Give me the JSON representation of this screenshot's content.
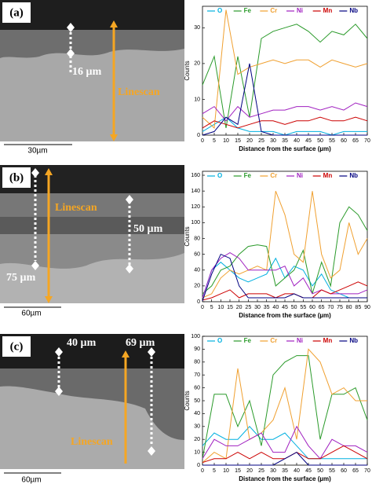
{
  "images": [
    {
      "label": "(a)",
      "annotations": [
        "16 µm",
        "Linescan"
      ],
      "scale_bar": "30µm"
    },
    {
      "label": "(b)",
      "annotations": [
        "75 µm",
        "Linescan",
        "50 µm"
      ],
      "scale_bar": "60µm"
    },
    {
      "label": "(c)",
      "annotations": [
        "40 µm",
        "69 µm",
        "Linescan"
      ],
      "scale_bar": "60µm"
    }
  ],
  "chart_data": [
    {
      "type": "line",
      "x_label": "Distance from the surface (µm)",
      "y_label": "Counts",
      "x": [
        0,
        5,
        10,
        15,
        20,
        25,
        30,
        35,
        40,
        45,
        50,
        55,
        60,
        65,
        70
      ],
      "xlim": [
        0,
        70
      ],
      "xticks": [
        0,
        5,
        10,
        15,
        20,
        25,
        30,
        35,
        40,
        45,
        50,
        55,
        60,
        65,
        70
      ],
      "ylim": [
        0,
        36
      ],
      "yticks": [
        0,
        10,
        20,
        30
      ],
      "series": [
        {
          "name": "O",
          "color": "#00b0e0",
          "values": [
            1,
            3,
            5,
            2,
            1,
            1,
            1,
            0,
            1,
            1,
            1,
            0,
            1,
            1,
            1
          ]
        },
        {
          "name": "Fe",
          "color": "#2a9a2a",
          "values": [
            14,
            22,
            2,
            22,
            5,
            27,
            29,
            30,
            31,
            29,
            26,
            29,
            28,
            31,
            27
          ]
        },
        {
          "name": "Cr",
          "color": "#f0a030",
          "values": [
            5,
            2,
            35,
            17,
            19,
            20,
            21,
            20,
            21,
            21,
            19,
            21,
            20,
            19,
            20
          ]
        },
        {
          "name": "Ni",
          "color": "#a020c0",
          "values": [
            6,
            8,
            4,
            8,
            5,
            6,
            7,
            7,
            8,
            8,
            7,
            8,
            7,
            9,
            8
          ]
        },
        {
          "name": "Mn",
          "color": "#cc0000",
          "values": [
            2,
            4,
            3,
            2,
            3,
            4,
            4,
            3,
            4,
            4,
            5,
            4,
            4,
            5,
            4
          ]
        },
        {
          "name": "Nb",
          "color": "#000080",
          "values": [
            0,
            1,
            5,
            3,
            20,
            1,
            0,
            0,
            0,
            0,
            0,
            0,
            0,
            0,
            0
          ]
        }
      ]
    },
    {
      "type": "line",
      "x_label": "Distance from the surface (µm)",
      "y_label": "Counts",
      "x": [
        0,
        5,
        10,
        15,
        20,
        25,
        30,
        35,
        40,
        45,
        50,
        55,
        60,
        65,
        70,
        75,
        80,
        85,
        90
      ],
      "xlim": [
        0,
        90
      ],
      "xticks": [
        0,
        5,
        10,
        15,
        20,
        25,
        30,
        35,
        40,
        45,
        50,
        55,
        60,
        65,
        70,
        75,
        80,
        85,
        90
      ],
      "ylim": [
        0,
        165
      ],
      "yticks": [
        0,
        20,
        40,
        60,
        80,
        100,
        120,
        140,
        160
      ],
      "series": [
        {
          "name": "O",
          "color": "#00b0e0",
          "values": [
            5,
            40,
            50,
            40,
            30,
            25,
            30,
            35,
            55,
            30,
            45,
            40,
            20,
            35,
            15,
            10,
            5,
            5,
            5
          ]
        },
        {
          "name": "Fe",
          "color": "#2a9a2a",
          "values": [
            10,
            20,
            40,
            45,
            60,
            70,
            72,
            70,
            20,
            30,
            40,
            65,
            10,
            50,
            20,
            100,
            120,
            110,
            90
          ]
        },
        {
          "name": "Cr",
          "color": "#f0a030",
          "values": [
            5,
            10,
            30,
            40,
            35,
            40,
            45,
            40,
            140,
            110,
            60,
            50,
            140,
            60,
            30,
            40,
            100,
            60,
            80
          ]
        },
        {
          "name": "Ni",
          "color": "#a020c0",
          "values": [
            5,
            40,
            55,
            62,
            55,
            40,
            40,
            40,
            40,
            45,
            20,
            30,
            10,
            15,
            10,
            10,
            10,
            10,
            15
          ]
        },
        {
          "name": "Mn",
          "color": "#cc0000",
          "values": [
            2,
            5,
            10,
            15,
            5,
            10,
            10,
            10,
            5,
            10,
            10,
            5,
            5,
            15,
            10,
            15,
            20,
            25,
            20
          ]
        },
        {
          "name": "Nb",
          "color": "#000080",
          "values": [
            1,
            35,
            60,
            55,
            20,
            5,
            5,
            5,
            5,
            5,
            10,
            5,
            5,
            5,
            5,
            5,
            5,
            5,
            5
          ]
        }
      ]
    },
    {
      "type": "line",
      "x_label": "Distance from the surface (µm)",
      "y_label": "Counts",
      "x": [
        0,
        5,
        10,
        15,
        20,
        25,
        30,
        35,
        40,
        45,
        50,
        55,
        60,
        65,
        70
      ],
      "xlim": [
        0,
        70
      ],
      "xticks": [
        0,
        5,
        10,
        15,
        20,
        25,
        30,
        35,
        40,
        45,
        50,
        55,
        60,
        65,
        70
      ],
      "ylim": [
        0,
        100
      ],
      "yticks": [
        0,
        10,
        20,
        30,
        40,
        50,
        60,
        70,
        80,
        90,
        100
      ],
      "series": [
        {
          "name": "O",
          "color": "#00b0e0",
          "values": [
            15,
            25,
            20,
            20,
            30,
            20,
            20,
            25,
            15,
            5,
            5,
            5,
            5,
            5,
            5
          ]
        },
        {
          "name": "Fe",
          "color": "#2a9a2a",
          "values": [
            5,
            55,
            55,
            30,
            50,
            15,
            70,
            80,
            85,
            85,
            20,
            55,
            55,
            60,
            35
          ]
        },
        {
          "name": "Cr",
          "color": "#f0a030",
          "values": [
            2,
            10,
            5,
            75,
            20,
            25,
            35,
            60,
            20,
            90,
            80,
            55,
            60,
            50,
            50
          ]
        },
        {
          "name": "Ni",
          "color": "#a020c0",
          "values": [
            5,
            20,
            15,
            15,
            20,
            25,
            10,
            10,
            30,
            15,
            5,
            20,
            15,
            15,
            10
          ]
        },
        {
          "name": "Mn",
          "color": "#cc0000",
          "values": [
            2,
            5,
            5,
            10,
            5,
            10,
            5,
            5,
            10,
            5,
            5,
            10,
            15,
            10,
            5
          ]
        },
        {
          "name": "Nb",
          "color": "#000080",
          "values": [
            0,
            0,
            0,
            0,
            0,
            0,
            0,
            5,
            10,
            0,
            0,
            0,
            0,
            0,
            0
          ]
        }
      ]
    }
  ]
}
